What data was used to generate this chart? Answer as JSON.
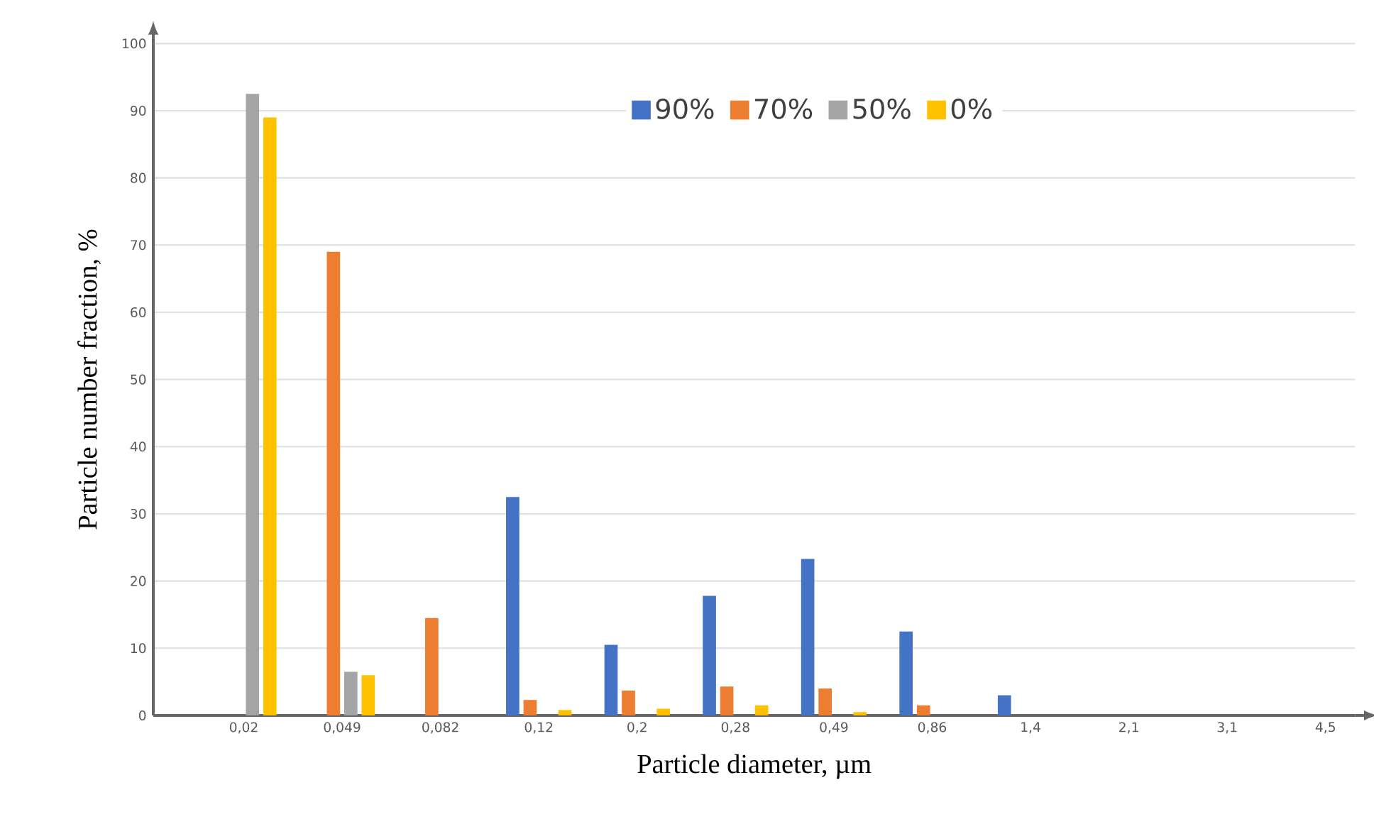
{
  "chart_data": {
    "type": "bar",
    "xlabel": "Particle diameter, µm",
    "ylabel": "Particle number fraction, %",
    "categories": [
      "0,02",
      "0,049",
      "0,082",
      "0,12",
      "0,2",
      "0,28",
      "0,49",
      "0,86",
      "1,4",
      "2,1",
      "3,1",
      "4,5"
    ],
    "series": [
      {
        "name": "90%",
        "color": "#4472c4",
        "values": [
          0,
          0,
          0,
          32.5,
          10.5,
          17.8,
          23.3,
          12.5,
          3,
          0,
          0,
          0
        ]
      },
      {
        "name": "70%",
        "color": "#ed7d31",
        "values": [
          0,
          69,
          14.5,
          2.3,
          3.7,
          4.3,
          4,
          1.5,
          0,
          0,
          0,
          0
        ]
      },
      {
        "name": "50%",
        "color": "#a5a5a5",
        "values": [
          92.5,
          6.5,
          0,
          0,
          0,
          0,
          0,
          0,
          0,
          0,
          0,
          0
        ]
      },
      {
        "name": "0%",
        "color": "#ffc000",
        "values": [
          89,
          6,
          0,
          0.8,
          1,
          1.5,
          0.5,
          0,
          0,
          0,
          0,
          0
        ]
      }
    ],
    "ylim": [
      0,
      100
    ],
    "yticks": [
      0,
      10,
      20,
      30,
      40,
      50,
      60,
      70,
      80,
      90,
      100
    ],
    "grid": "y",
    "legend": "top"
  }
}
